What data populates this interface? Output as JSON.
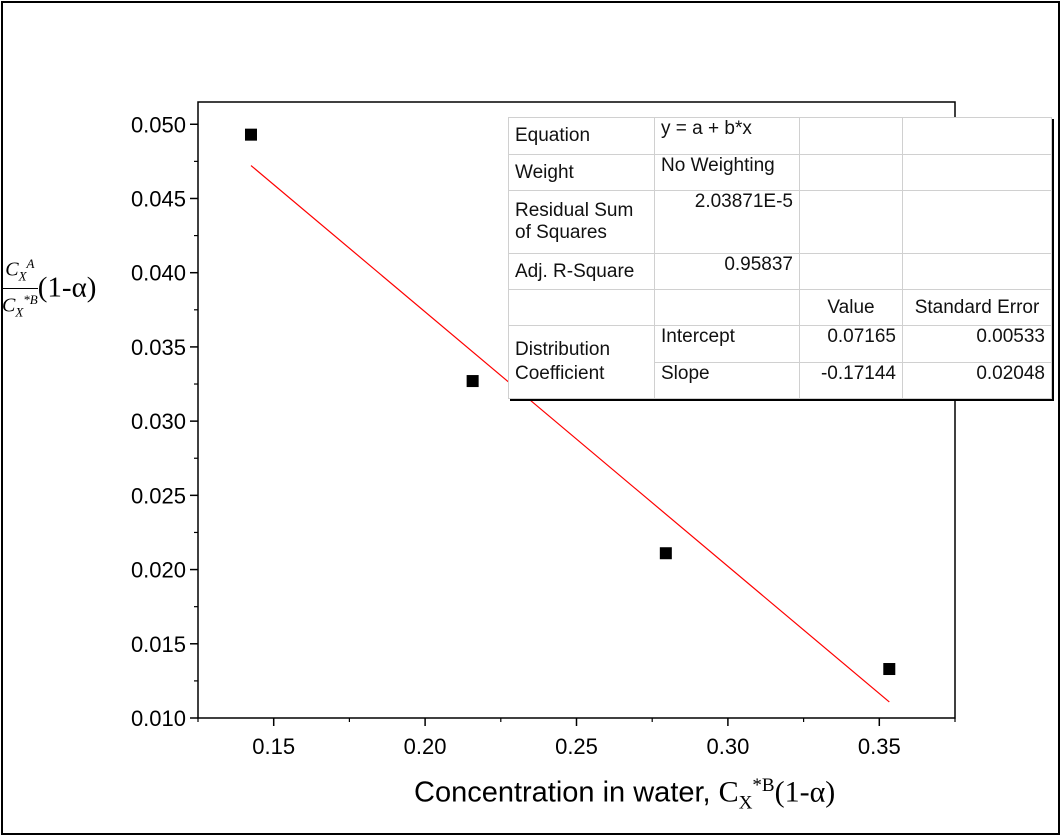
{
  "chart_data": {
    "type": "scatter",
    "x_ticks": [
      "0.15",
      "0.20",
      "0.25",
      "0.30",
      "0.35"
    ],
    "y_ticks": [
      "0.010",
      "0.015",
      "0.020",
      "0.025",
      "0.030",
      "0.035",
      "0.040",
      "0.045",
      "0.050"
    ],
    "xlim": [
      0.125,
      0.375
    ],
    "ylim": [
      0.01,
      0.0515
    ],
    "points": [
      {
        "x": 0.1425,
        "y": 0.0493
      },
      {
        "x": 0.2157,
        "y": 0.0327
      },
      {
        "x": 0.2795,
        "y": 0.0211
      },
      {
        "x": 0.3533,
        "y": 0.0133
      }
    ],
    "fit_line": {
      "x_start": 0.1425,
      "x_end": 0.3533,
      "intercept": 0.07165,
      "slope": -0.17144,
      "color": "#ff0000"
    },
    "marker_color": "#000000",
    "xlabel": {
      "text": "Concentration in water, ",
      "symbol": "C",
      "sub": "X",
      "sup": "*B",
      "tail": "(1-α)"
    },
    "ylabel": {
      "num_symbol": "C",
      "num_sub": "X",
      "num_sup": "A",
      "den_symbol": "C",
      "den_sub": "X",
      "den_sup": "*B",
      "tail": "(1-α)"
    },
    "fit_table": {
      "equation_label": "Equation",
      "equation_value": "y = a + b*x",
      "weight_label": "Weight",
      "weight_value": "No Weighting",
      "rss_label": "Residual Sum of Squares",
      "rss_value": "2.03871E-5",
      "r2_label": "Adj. R-Square",
      "r2_value": "0.95837",
      "value_header": "Value",
      "se_header": "Standard Error",
      "group_label": "Distribution Coefficient",
      "intercept_label": "Intercept",
      "intercept_value": "0.07165",
      "intercept_se": "0.00533",
      "slope_label": "Slope",
      "slope_value": "-0.17144",
      "slope_se": "0.02048"
    }
  }
}
